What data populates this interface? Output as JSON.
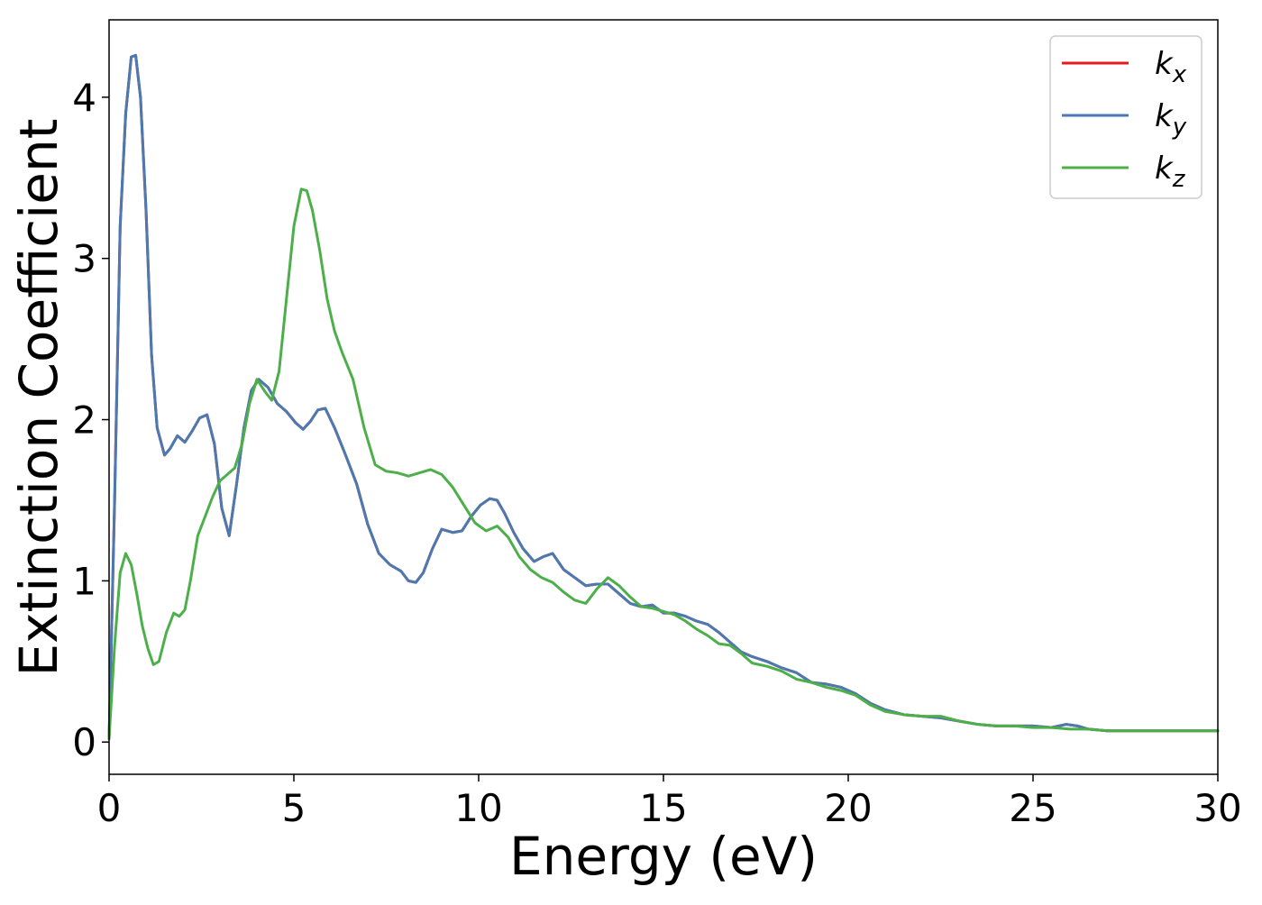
{
  "chart_data": {
    "type": "line",
    "title": "",
    "xlabel": "Energy (eV)",
    "ylabel": "Extinction Coefficient",
    "xlim": [
      0,
      30
    ],
    "ylim": [
      -0.2,
      4.48
    ],
    "xticks": [
      0,
      5,
      10,
      15,
      20,
      25,
      30
    ],
    "yticks": [
      0,
      1,
      2,
      3,
      4
    ],
    "grid": false,
    "legend_position": "top-right",
    "series": [
      {
        "name": "k_x",
        "legend_base": "k",
        "legend_sub": "x",
        "color": "#e41a1c",
        "x": [
          0,
          0.15,
          0.3,
          0.45,
          0.6,
          0.72,
          0.85,
          1.0,
          1.15,
          1.3,
          1.5,
          1.65,
          1.85,
          2.05,
          2.25,
          2.45,
          2.65,
          2.85,
          3.05,
          3.25,
          3.45,
          3.65,
          3.85,
          4.05,
          4.3,
          4.55,
          4.8,
          5.05,
          5.25,
          5.45,
          5.65,
          5.85,
          6.1,
          6.4,
          6.7,
          7.0,
          7.3,
          7.6,
          7.9,
          8.1,
          8.3,
          8.5,
          8.75,
          9.0,
          9.3,
          9.55,
          9.8,
          10.05,
          10.3,
          10.5,
          10.7,
          10.95,
          11.2,
          11.5,
          11.75,
          12.0,
          12.3,
          12.6,
          12.9,
          13.2,
          13.5,
          13.8,
          14.1,
          14.4,
          14.7,
          15.0,
          15.3,
          15.6,
          15.9,
          16.2,
          16.5,
          16.8,
          17.1,
          17.4,
          17.8,
          18.2,
          18.6,
          19.0,
          19.4,
          19.8,
          20.2,
          20.6,
          21.0,
          21.5,
          22.0,
          22.5,
          23.0,
          23.5,
          24.0,
          24.5,
          25.0,
          25.5,
          25.9,
          26.2,
          26.5,
          27.0,
          27.5,
          28.0,
          28.5,
          29.0,
          29.5,
          30.0
        ],
        "y": [
          0.02,
          1.5,
          3.2,
          3.9,
          4.25,
          4.26,
          4.0,
          3.3,
          2.4,
          1.95,
          1.78,
          1.82,
          1.9,
          1.86,
          1.93,
          2.01,
          2.03,
          1.85,
          1.45,
          1.28,
          1.6,
          1.95,
          2.18,
          2.25,
          2.2,
          2.1,
          2.05,
          1.98,
          1.94,
          1.99,
          2.06,
          2.07,
          1.95,
          1.78,
          1.6,
          1.35,
          1.17,
          1.1,
          1.06,
          1.0,
          0.99,
          1.05,
          1.2,
          1.32,
          1.3,
          1.31,
          1.4,
          1.47,
          1.51,
          1.5,
          1.42,
          1.3,
          1.2,
          1.12,
          1.15,
          1.17,
          1.07,
          1.02,
          0.97,
          0.98,
          0.98,
          0.92,
          0.86,
          0.84,
          0.85,
          0.8,
          0.8,
          0.78,
          0.75,
          0.73,
          0.68,
          0.62,
          0.56,
          0.53,
          0.5,
          0.46,
          0.43,
          0.37,
          0.36,
          0.34,
          0.3,
          0.24,
          0.2,
          0.17,
          0.16,
          0.15,
          0.13,
          0.11,
          0.1,
          0.1,
          0.1,
          0.09,
          0.11,
          0.1,
          0.08,
          0.07,
          0.07,
          0.07,
          0.07,
          0.07,
          0.07,
          0.07
        ]
      },
      {
        "name": "k_y",
        "legend_base": "k",
        "legend_sub": "y",
        "color": "#4a7ab0",
        "x": [
          0,
          0.15,
          0.3,
          0.45,
          0.6,
          0.72,
          0.85,
          1.0,
          1.15,
          1.3,
          1.5,
          1.65,
          1.85,
          2.05,
          2.25,
          2.45,
          2.65,
          2.85,
          3.05,
          3.25,
          3.45,
          3.65,
          3.85,
          4.05,
          4.3,
          4.55,
          4.8,
          5.05,
          5.25,
          5.45,
          5.65,
          5.85,
          6.1,
          6.4,
          6.7,
          7.0,
          7.3,
          7.6,
          7.9,
          8.1,
          8.3,
          8.5,
          8.75,
          9.0,
          9.3,
          9.55,
          9.8,
          10.05,
          10.3,
          10.5,
          10.7,
          10.95,
          11.2,
          11.5,
          11.75,
          12.0,
          12.3,
          12.6,
          12.9,
          13.2,
          13.5,
          13.8,
          14.1,
          14.4,
          14.7,
          15.0,
          15.3,
          15.6,
          15.9,
          16.2,
          16.5,
          16.8,
          17.1,
          17.4,
          17.8,
          18.2,
          18.6,
          19.0,
          19.4,
          19.8,
          20.2,
          20.6,
          21.0,
          21.5,
          22.0,
          22.5,
          23.0,
          23.5,
          24.0,
          24.5,
          25.0,
          25.5,
          25.9,
          26.2,
          26.5,
          27.0,
          27.5,
          28.0,
          28.5,
          29.0,
          29.5,
          30.0
        ],
        "y": [
          0.02,
          1.5,
          3.2,
          3.9,
          4.25,
          4.26,
          4.0,
          3.3,
          2.4,
          1.95,
          1.78,
          1.82,
          1.9,
          1.86,
          1.93,
          2.01,
          2.03,
          1.85,
          1.45,
          1.28,
          1.6,
          1.95,
          2.18,
          2.25,
          2.2,
          2.1,
          2.05,
          1.98,
          1.94,
          1.99,
          2.06,
          2.07,
          1.95,
          1.78,
          1.6,
          1.35,
          1.17,
          1.1,
          1.06,
          1.0,
          0.99,
          1.05,
          1.2,
          1.32,
          1.3,
          1.31,
          1.4,
          1.47,
          1.51,
          1.5,
          1.42,
          1.3,
          1.2,
          1.12,
          1.15,
          1.17,
          1.07,
          1.02,
          0.97,
          0.98,
          0.98,
          0.92,
          0.86,
          0.84,
          0.85,
          0.8,
          0.8,
          0.78,
          0.75,
          0.73,
          0.68,
          0.62,
          0.56,
          0.53,
          0.5,
          0.46,
          0.43,
          0.37,
          0.36,
          0.34,
          0.3,
          0.24,
          0.2,
          0.17,
          0.16,
          0.15,
          0.13,
          0.11,
          0.1,
          0.1,
          0.1,
          0.09,
          0.11,
          0.1,
          0.08,
          0.07,
          0.07,
          0.07,
          0.07,
          0.07,
          0.07,
          0.07
        ]
      },
      {
        "name": "k_z",
        "legend_base": "k",
        "legend_sub": "z",
        "color": "#4daf4a",
        "x": [
          0,
          0.15,
          0.3,
          0.45,
          0.6,
          0.75,
          0.9,
          1.05,
          1.2,
          1.35,
          1.55,
          1.75,
          1.9,
          2.05,
          2.2,
          2.4,
          2.6,
          2.8,
          3.0,
          3.2,
          3.4,
          3.6,
          3.8,
          4.0,
          4.2,
          4.4,
          4.6,
          4.8,
          5.0,
          5.2,
          5.35,
          5.5,
          5.7,
          5.9,
          6.1,
          6.3,
          6.6,
          6.9,
          7.2,
          7.5,
          7.8,
          8.1,
          8.4,
          8.7,
          9.0,
          9.3,
          9.6,
          9.9,
          10.2,
          10.5,
          10.8,
          11.1,
          11.4,
          11.7,
          12.0,
          12.3,
          12.6,
          12.9,
          13.2,
          13.5,
          13.8,
          14.1,
          14.4,
          14.7,
          15.0,
          15.3,
          15.6,
          15.9,
          16.2,
          16.5,
          16.8,
          17.1,
          17.4,
          17.8,
          18.2,
          18.6,
          19.0,
          19.4,
          19.8,
          20.2,
          20.6,
          21.0,
          21.5,
          22.0,
          22.5,
          23.0,
          23.5,
          24.0,
          24.5,
          25.0,
          25.5,
          26.0,
          26.5,
          27.0,
          27.5,
          28.0,
          28.5,
          29.0,
          29.5,
          30.0
        ],
        "y": [
          0.02,
          0.6,
          1.05,
          1.17,
          1.1,
          0.92,
          0.72,
          0.58,
          0.48,
          0.5,
          0.68,
          0.8,
          0.78,
          0.82,
          1.0,
          1.28,
          1.4,
          1.52,
          1.62,
          1.66,
          1.7,
          1.85,
          2.1,
          2.25,
          2.18,
          2.12,
          2.3,
          2.75,
          3.2,
          3.43,
          3.42,
          3.3,
          3.05,
          2.75,
          2.55,
          2.42,
          2.25,
          1.95,
          1.72,
          1.68,
          1.67,
          1.65,
          1.67,
          1.69,
          1.66,
          1.58,
          1.47,
          1.36,
          1.31,
          1.34,
          1.27,
          1.15,
          1.07,
          1.02,
          0.99,
          0.93,
          0.88,
          0.86,
          0.95,
          1.02,
          0.97,
          0.9,
          0.84,
          0.83,
          0.81,
          0.79,
          0.75,
          0.7,
          0.66,
          0.61,
          0.6,
          0.55,
          0.49,
          0.47,
          0.44,
          0.39,
          0.37,
          0.34,
          0.32,
          0.29,
          0.23,
          0.19,
          0.17,
          0.16,
          0.16,
          0.13,
          0.11,
          0.1,
          0.1,
          0.09,
          0.09,
          0.08,
          0.08,
          0.07,
          0.07,
          0.07,
          0.07,
          0.07,
          0.07,
          0.07
        ]
      }
    ]
  }
}
